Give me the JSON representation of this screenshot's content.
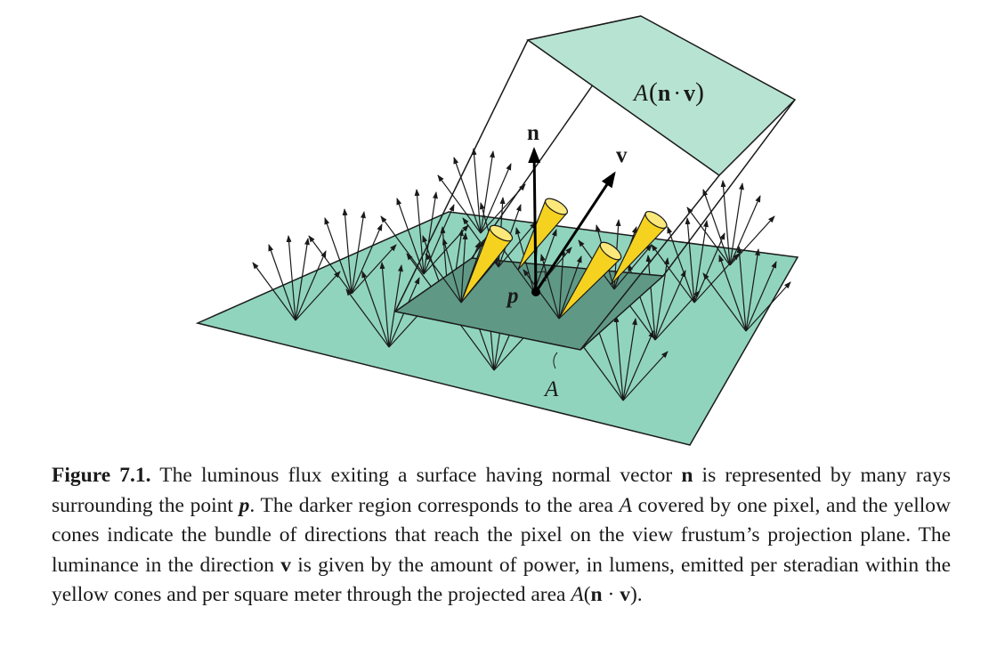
{
  "figure": {
    "colors": {
      "surface": "#90d4bd",
      "pixel_region": "#5f9986",
      "projected_area": "#b7e3d3",
      "cone": "#f5d21f",
      "outline": "#1a1a1a"
    },
    "labels": {
      "normal": "n",
      "view": "v",
      "point": "p",
      "area": "A",
      "projected_area_prefix": "A",
      "projected_area_n": "n",
      "projected_area_dot": "·",
      "projected_area_v": "v"
    }
  },
  "caption": {
    "label": "Figure 7.1.",
    "part1": " The luminous flux exiting a surface having normal vector ",
    "n1": "n",
    "part2": " is represented by many rays surrounding the point ",
    "p": "p",
    "part3": ". The darker region corresponds to the area ",
    "a1": "A",
    "part4": " covered by one pixel, and the yellow cones indicate the bundle of directions that reach the pixel on the view frustum’s projection plane. The luminance in the direction ",
    "v1": "v",
    "part5": " is given by the amount of power, in lumens, emitted per steradian within the yellow cones and per square meter through the projected area ",
    "a2": "A",
    "paren_open": "(",
    "n2": "n",
    "dot": " · ",
    "v2": "v",
    "paren_close": ")",
    "end": "."
  }
}
